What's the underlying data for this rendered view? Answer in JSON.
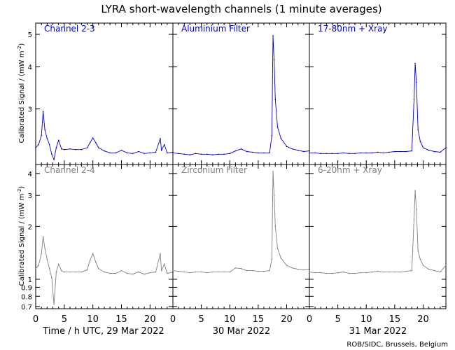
{
  "title": "LYRA short-wavelength channels (1 minute averages)",
  "ylabel_main": "Calibrated Signal / (mW m",
  "ylabel_sup": "-2",
  "ylabel_close": ")",
  "xlabel_prefix": "Time / h UTC, 29 Mar 2022",
  "day_labels": [
    "30 Mar 2022",
    "31 Mar 2022"
  ],
  "credit": "ROB/SIDC, Brussels, Belgium",
  "colors": {
    "top": "#0000cc",
    "bottom": "#808080",
    "axis": "#000000"
  },
  "chart_data": [
    {
      "type": "scatter",
      "row": "top",
      "y_scale": "log",
      "ylim": [
        2.05,
        5.4
      ],
      "yticks": [
        3,
        4,
        5
      ],
      "xticks": [
        0,
        5,
        10,
        15,
        20
      ],
      "xlim": [
        0,
        24
      ],
      "panels": [
        {
          "label": "Channel 2-3",
          "points": [
            [
              0,
              2.3
            ],
            [
              0.5,
              2.35
            ],
            [
              1,
              2.5
            ],
            [
              1.3,
              2.95
            ],
            [
              1.6,
              2.6
            ],
            [
              2,
              2.45
            ],
            [
              2.4,
              2.35
            ],
            [
              2.8,
              2.2
            ],
            [
              3.2,
              2.12
            ],
            [
              3.6,
              2.3
            ],
            [
              4,
              2.42
            ],
            [
              4.5,
              2.28
            ],
            [
              5,
              2.27
            ],
            [
              6,
              2.28
            ],
            [
              7,
              2.27
            ],
            [
              8,
              2.27
            ],
            [
              9,
              2.3
            ],
            [
              9.5,
              2.38
            ],
            [
              10,
              2.46
            ],
            [
              10.5,
              2.38
            ],
            [
              11,
              2.3
            ],
            [
              12,
              2.25
            ],
            [
              13,
              2.22
            ],
            [
              14,
              2.22
            ],
            [
              15,
              2.26
            ],
            [
              16,
              2.22
            ],
            [
              17,
              2.21
            ],
            [
              18,
              2.24
            ],
            [
              19,
              2.21
            ],
            [
              20,
              2.22
            ],
            [
              21,
              2.23
            ],
            [
              21.8,
              2.45
            ],
            [
              22,
              2.26
            ],
            [
              22.5,
              2.35
            ],
            [
              23,
              2.22
            ],
            [
              24,
              2.23
            ]
          ]
        },
        {
          "label": "Aluminium Filter",
          "points": [
            [
              0,
              2.22
            ],
            [
              1,
              2.21
            ],
            [
              2,
              2.2
            ],
            [
              3,
              2.19
            ],
            [
              4,
              2.21
            ],
            [
              5,
              2.2
            ],
            [
              6,
              2.2
            ],
            [
              7,
              2.19
            ],
            [
              8,
              2.2
            ],
            [
              9,
              2.2
            ],
            [
              10,
              2.21
            ],
            [
              11,
              2.25
            ],
            [
              12,
              2.28
            ],
            [
              13,
              2.24
            ],
            [
              14,
              2.23
            ],
            [
              15,
              2.22
            ],
            [
              16,
              2.22
            ],
            [
              17,
              2.22
            ],
            [
              17.4,
              2.5
            ],
            [
              17.6,
              4.95
            ],
            [
              17.8,
              4.2
            ],
            [
              18,
              3.2
            ],
            [
              18.4,
              2.65
            ],
            [
              19,
              2.45
            ],
            [
              20,
              2.32
            ],
            [
              21,
              2.28
            ],
            [
              22,
              2.26
            ],
            [
              23,
              2.24
            ],
            [
              24,
              2.25
            ]
          ]
        },
        {
          "label": "17-80nm + Xray",
          "points": [
            [
              0,
              2.22
            ],
            [
              1,
              2.22
            ],
            [
              2,
              2.21
            ],
            [
              3,
              2.21
            ],
            [
              4,
              2.21
            ],
            [
              5,
              2.21
            ],
            [
              6,
              2.22
            ],
            [
              7,
              2.21
            ],
            [
              8,
              2.21
            ],
            [
              9,
              2.22
            ],
            [
              10,
              2.22
            ],
            [
              11,
              2.22
            ],
            [
              12,
              2.23
            ],
            [
              13,
              2.22
            ],
            [
              14,
              2.23
            ],
            [
              15,
              2.24
            ],
            [
              16,
              2.24
            ],
            [
              17,
              2.24
            ],
            [
              18,
              2.25
            ],
            [
              18.4,
              3.2
            ],
            [
              18.6,
              4.1
            ],
            [
              18.8,
              3.6
            ],
            [
              19.1,
              2.6
            ],
            [
              19.5,
              2.4
            ],
            [
              20,
              2.3
            ],
            [
              21,
              2.26
            ],
            [
              22,
              2.24
            ],
            [
              23,
              2.23
            ],
            [
              24,
              2.3
            ]
          ]
        }
      ]
    },
    {
      "type": "scatter",
      "row": "bottom",
      "y_scale": "log",
      "ylim": [
        0.68,
        4.5
      ],
      "yticks": [
        0.7,
        0.8,
        0.9,
        1.0,
        2.0,
        3.0,
        4.0
      ],
      "xticks": [
        0,
        5,
        10,
        15,
        20
      ],
      "xlim": [
        0,
        24
      ],
      "panels": [
        {
          "label": "Channel 2-4",
          "points": [
            [
              0,
              1.15
            ],
            [
              0.5,
              1.2
            ],
            [
              1,
              1.4
            ],
            [
              1.3,
              1.75
            ],
            [
              1.6,
              1.5
            ],
            [
              2,
              1.3
            ],
            [
              2.4,
              1.15
            ],
            [
              2.8,
              1.02
            ],
            [
              3.2,
              0.72
            ],
            [
              3.6,
              1.1
            ],
            [
              4,
              1.22
            ],
            [
              4.5,
              1.12
            ],
            [
              5,
              1.1
            ],
            [
              6,
              1.1
            ],
            [
              7,
              1.1
            ],
            [
              8,
              1.1
            ],
            [
              9,
              1.13
            ],
            [
              9.5,
              1.28
            ],
            [
              10,
              1.4
            ],
            [
              10.5,
              1.25
            ],
            [
              11,
              1.15
            ],
            [
              12,
              1.1
            ],
            [
              13,
              1.08
            ],
            [
              14,
              1.08
            ],
            [
              15,
              1.12
            ],
            [
              16,
              1.08
            ],
            [
              17,
              1.07
            ],
            [
              18,
              1.1
            ],
            [
              19,
              1.07
            ],
            [
              20,
              1.09
            ],
            [
              21,
              1.1
            ],
            [
              21.8,
              1.4
            ],
            [
              22,
              1.12
            ],
            [
              22.5,
              1.22
            ],
            [
              23,
              1.08
            ],
            [
              24,
              1.1
            ]
          ]
        },
        {
          "label": "Zirconium Filter",
          "points": [
            [
              0,
              1.12
            ],
            [
              1,
              1.11
            ],
            [
              2,
              1.1
            ],
            [
              3,
              1.09
            ],
            [
              4,
              1.1
            ],
            [
              5,
              1.1
            ],
            [
              6,
              1.09
            ],
            [
              7,
              1.1
            ],
            [
              8,
              1.1
            ],
            [
              9,
              1.1
            ],
            [
              10,
              1.1
            ],
            [
              11,
              1.16
            ],
            [
              12,
              1.15
            ],
            [
              13,
              1.12
            ],
            [
              14,
              1.12
            ],
            [
              15,
              1.11
            ],
            [
              16,
              1.11
            ],
            [
              17,
              1.12
            ],
            [
              17.4,
              1.3
            ],
            [
              17.6,
              4.1
            ],
            [
              17.8,
              3.0
            ],
            [
              18,
              2.0
            ],
            [
              18.4,
              1.5
            ],
            [
              19,
              1.32
            ],
            [
              20,
              1.2
            ],
            [
              21,
              1.16
            ],
            [
              22,
              1.14
            ],
            [
              23,
              1.13
            ],
            [
              24,
              1.14
            ]
          ]
        },
        {
          "label": "6-20nm + Xray",
          "points": [
            [
              0,
              1.1
            ],
            [
              1,
              1.09
            ],
            [
              2,
              1.09
            ],
            [
              3,
              1.08
            ],
            [
              4,
              1.08
            ],
            [
              5,
              1.09
            ],
            [
              6,
              1.1
            ],
            [
              7,
              1.08
            ],
            [
              8,
              1.08
            ],
            [
              9,
              1.09
            ],
            [
              10,
              1.09
            ],
            [
              11,
              1.1
            ],
            [
              12,
              1.11
            ],
            [
              13,
              1.1
            ],
            [
              14,
              1.1
            ],
            [
              15,
              1.1
            ],
            [
              16,
              1.1
            ],
            [
              17,
              1.11
            ],
            [
              18,
              1.12
            ],
            [
              18.4,
              2.2
            ],
            [
              18.6,
              3.2
            ],
            [
              18.8,
              2.5
            ],
            [
              19.1,
              1.45
            ],
            [
              19.5,
              1.3
            ],
            [
              20,
              1.2
            ],
            [
              21,
              1.14
            ],
            [
              22,
              1.12
            ],
            [
              23,
              1.1
            ],
            [
              24,
              1.2
            ]
          ]
        }
      ]
    }
  ]
}
